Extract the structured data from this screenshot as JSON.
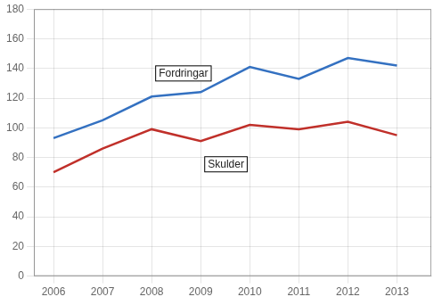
{
  "chart_data": {
    "type": "line",
    "x": [
      2006,
      2007,
      2008,
      2009,
      2010,
      2011,
      2012,
      2013
    ],
    "series": [
      {
        "name": "Fordringar",
        "color": "#3471c1",
        "values": [
          93,
          105,
          121,
          124,
          141,
          133,
          147,
          142
        ]
      },
      {
        "name": "Skulder",
        "color": "#c0302a",
        "values": [
          70,
          86,
          99,
          91,
          102,
          99,
          104,
          95
        ]
      }
    ],
    "xlim": [
      2005.6,
      2013.7
    ],
    "xticks": [
      2006,
      2007,
      2008,
      2009,
      2010,
      2011,
      2012,
      2013
    ],
    "ylim": [
      0,
      180
    ],
    "yticks": [
      0,
      20,
      40,
      60,
      80,
      100,
      120,
      140,
      160,
      180
    ],
    "grid": true
  }
}
